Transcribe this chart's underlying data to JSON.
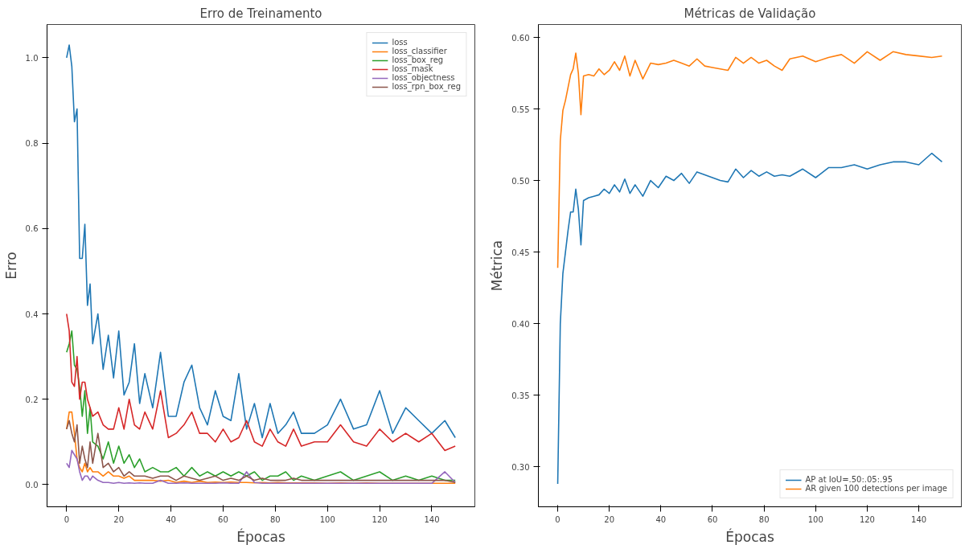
{
  "chart_data": [
    {
      "type": "line",
      "title": "Erro de Treinamento",
      "xlabel": "Épocas",
      "ylabel": "Erro",
      "legend": "top right",
      "grid": false,
      "xlim": [
        -7.5,
        156.5
      ],
      "ylim": [
        -0.052,
        1.078
      ],
      "xticks": [
        0,
        20,
        40,
        60,
        80,
        100,
        120,
        140
      ],
      "yticks": [
        {
          "value": 0,
          "label": "0.0"
        },
        0.2,
        0.4,
        0.6,
        0.8,
        {
          "value": 1,
          "label": "1.0"
        }
      ],
      "x": [
        0,
        1,
        2,
        3,
        4,
        5,
        6,
        7,
        8,
        9,
        10,
        12,
        14,
        16,
        18,
        20,
        22,
        24,
        26,
        28,
        30,
        33,
        36,
        39,
        42,
        45,
        48,
        51,
        54,
        57,
        60,
        63,
        66,
        69,
        72,
        75,
        78,
        81,
        84,
        87,
        90,
        95,
        100,
        105,
        110,
        115,
        120,
        125,
        130,
        135,
        140,
        145,
        149
      ],
      "series": [
        {
          "name": "loss",
          "color": "#1f77b4",
          "values": [
            1.0,
            1.03,
            0.98,
            0.85,
            0.88,
            0.53,
            0.53,
            0.61,
            0.42,
            0.47,
            0.33,
            0.4,
            0.27,
            0.35,
            0.25,
            0.36,
            0.21,
            0.24,
            0.33,
            0.19,
            0.26,
            0.18,
            0.31,
            0.16,
            0.16,
            0.24,
            0.28,
            0.18,
            0.14,
            0.22,
            0.16,
            0.15,
            0.26,
            0.13,
            0.19,
            0.11,
            0.19,
            0.12,
            0.14,
            0.17,
            0.12,
            0.12,
            0.14,
            0.2,
            0.13,
            0.14,
            0.22,
            0.12,
            0.18,
            0.15,
            0.12,
            0.15,
            0.11
          ]
        },
        {
          "name": "loss_classifier",
          "color": "#ff7f0e",
          "values": [
            0.13,
            0.17,
            0.17,
            0.12,
            0.06,
            0.04,
            0.03,
            0.05,
            0.03,
            0.04,
            0.03,
            0.03,
            0.02,
            0.03,
            0.02,
            0.02,
            0.015,
            0.02,
            0.01,
            0.01,
            0.01,
            0.01,
            0.008,
            0.01,
            0.005,
            0.008,
            0.005,
            0.008,
            0.005,
            0.006,
            0.005,
            0.006,
            0.005,
            0.005,
            0.004,
            0.005,
            0.004,
            0.005,
            0.004,
            0.004,
            0.004,
            0.004,
            0.003,
            0.004,
            0.003,
            0.004,
            0.003,
            0.003,
            0.003,
            0.003,
            0.003,
            0.003,
            0.003
          ]
        },
        {
          "name": "loss_box_reg",
          "color": "#2ca02c",
          "values": [
            0.31,
            0.33,
            0.36,
            0.28,
            0.27,
            0.23,
            0.16,
            0.22,
            0.12,
            0.18,
            0.1,
            0.09,
            0.06,
            0.1,
            0.05,
            0.09,
            0.05,
            0.07,
            0.04,
            0.06,
            0.03,
            0.04,
            0.03,
            0.03,
            0.04,
            0.02,
            0.04,
            0.02,
            0.03,
            0.02,
            0.03,
            0.02,
            0.03,
            0.02,
            0.03,
            0.01,
            0.02,
            0.02,
            0.03,
            0.01,
            0.02,
            0.01,
            0.02,
            0.03,
            0.01,
            0.02,
            0.03,
            0.01,
            0.02,
            0.01,
            0.02,
            0.01,
            0.01
          ]
        },
        {
          "name": "loss_mask",
          "color": "#d62728",
          "values": [
            0.4,
            0.36,
            0.24,
            0.23,
            0.3,
            0.2,
            0.24,
            0.24,
            0.2,
            0.18,
            0.16,
            0.17,
            0.14,
            0.13,
            0.13,
            0.18,
            0.13,
            0.2,
            0.14,
            0.13,
            0.17,
            0.13,
            0.22,
            0.11,
            0.12,
            0.14,
            0.17,
            0.12,
            0.12,
            0.1,
            0.13,
            0.1,
            0.11,
            0.15,
            0.1,
            0.09,
            0.13,
            0.1,
            0.09,
            0.13,
            0.09,
            0.1,
            0.1,
            0.14,
            0.1,
            0.09,
            0.13,
            0.1,
            0.12,
            0.1,
            0.12,
            0.08,
            0.09
          ]
        },
        {
          "name": "loss_objectness",
          "color": "#9467bd",
          "values": [
            0.05,
            0.04,
            0.08,
            0.07,
            0.06,
            0.03,
            0.01,
            0.02,
            0.02,
            0.01,
            0.02,
            0.01,
            0.005,
            0.005,
            0.003,
            0.005,
            0.003,
            0.004,
            0.003,
            0.004,
            0.003,
            0.003,
            0.01,
            0.003,
            0.003,
            0.004,
            0.003,
            0.003,
            0.003,
            0.003,
            0.004,
            0.003,
            0.003,
            0.03,
            0.005,
            0.003,
            0.003,
            0.003,
            0.003,
            0.003,
            0.003,
            0.003,
            0.003,
            0.003,
            0.003,
            0.003,
            0.003,
            0.003,
            0.003,
            0.003,
            0.003,
            0.03,
            0.005
          ]
        },
        {
          "name": "loss_rpn_box_reg",
          "color": "#8c564b",
          "values": [
            0.13,
            0.15,
            0.12,
            0.1,
            0.14,
            0.05,
            0.09,
            0.06,
            0.04,
            0.1,
            0.05,
            0.12,
            0.04,
            0.05,
            0.03,
            0.04,
            0.02,
            0.03,
            0.02,
            0.02,
            0.02,
            0.015,
            0.02,
            0.02,
            0.01,
            0.02,
            0.015,
            0.01,
            0.015,
            0.02,
            0.01,
            0.015,
            0.01,
            0.02,
            0.01,
            0.015,
            0.01,
            0.01,
            0.01,
            0.015,
            0.01,
            0.01,
            0.01,
            0.01,
            0.01,
            0.01,
            0.01,
            0.01,
            0.01,
            0.01,
            0.01,
            0.01,
            0.005
          ]
        }
      ]
    },
    {
      "type": "line",
      "title": "Métricas de Validação",
      "xlabel": "Épocas",
      "ylabel": "Métrica",
      "legend": "bottom right",
      "grid": false,
      "xlim": [
        -7.5,
        156.5
      ],
      "ylim": [
        0.272,
        0.609
      ],
      "xticks": [
        0,
        20,
        40,
        60,
        80,
        100,
        120,
        140
      ],
      "yticks": [
        {
          "value": 0.3,
          "label": "0.30"
        },
        0.35,
        {
          "value": 0.4,
          "label": "0.40"
        },
        0.45,
        {
          "value": 0.5,
          "label": "0.50"
        },
        0.55,
        {
          "value": 0.6,
          "label": "0.60"
        }
      ],
      "x": [
        0,
        1,
        2,
        3,
        4,
        5,
        6,
        7,
        8,
        9,
        10,
        12,
        14,
        16,
        18,
        20,
        22,
        24,
        26,
        28,
        30,
        33,
        36,
        39,
        42,
        45,
        48,
        51,
        54,
        57,
        60,
        63,
        66,
        69,
        72,
        75,
        78,
        81,
        84,
        87,
        90,
        95,
        100,
        105,
        110,
        115,
        120,
        125,
        130,
        135,
        140,
        145,
        149
      ],
      "series": [
        {
          "name": "AP at IoU=.50:.05:.95",
          "color": "#1f77b4",
          "values": [
            0.288,
            0.4,
            0.435,
            0.45,
            0.465,
            0.478,
            0.478,
            0.494,
            0.48,
            0.455,
            0.486,
            0.488,
            0.489,
            0.49,
            0.494,
            0.491,
            0.497,
            0.492,
            0.501,
            0.491,
            0.497,
            0.489,
            0.5,
            0.495,
            0.503,
            0.5,
            0.505,
            0.498,
            0.506,
            0.504,
            0.502,
            0.5,
            0.499,
            0.508,
            0.502,
            0.507,
            0.503,
            0.506,
            0.503,
            0.504,
            0.503,
            0.508,
            0.502,
            0.509,
            0.509,
            0.511,
            0.508,
            0.511,
            0.513,
            0.513,
            0.511,
            0.519,
            0.513
          ]
        },
        {
          "name": "AR given 100 detections per image",
          "color": "#ff7f0e",
          "values": [
            0.439,
            0.528,
            0.549,
            0.556,
            0.565,
            0.574,
            0.578,
            0.589,
            0.575,
            0.546,
            0.573,
            0.574,
            0.573,
            0.578,
            0.574,
            0.577,
            0.583,
            0.577,
            0.587,
            0.573,
            0.584,
            0.571,
            0.582,
            0.581,
            0.582,
            0.584,
            0.582,
            0.58,
            0.585,
            0.58,
            0.579,
            0.578,
            0.577,
            0.586,
            0.582,
            0.586,
            0.582,
            0.584,
            0.58,
            0.577,
            0.585,
            0.587,
            0.583,
            0.586,
            0.588,
            0.582,
            0.59,
            0.584,
            0.59,
            0.588,
            0.587,
            0.586,
            0.587
          ]
        }
      ]
    }
  ]
}
